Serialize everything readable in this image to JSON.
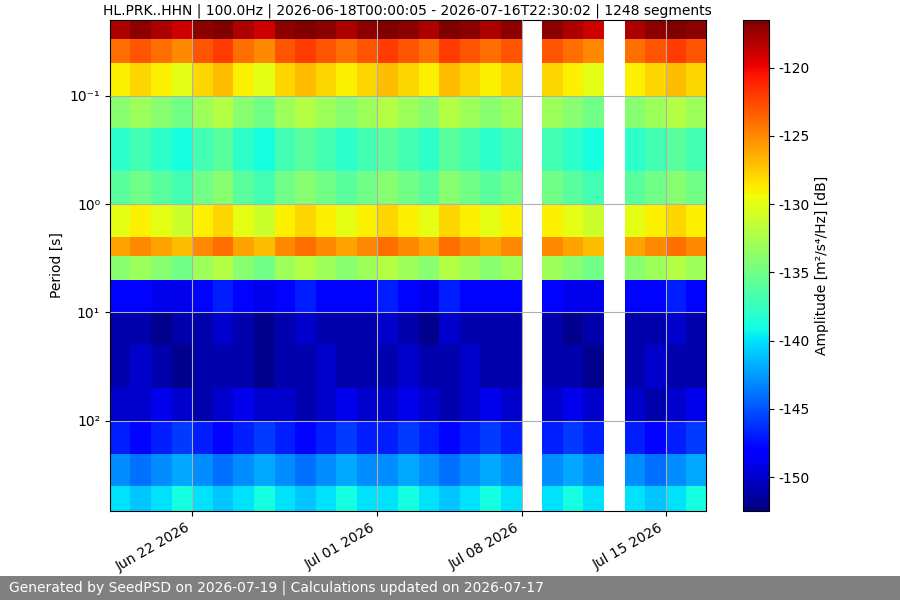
{
  "chart_data": {
    "type": "heatmap",
    "title": "HL.PRK..HHN | 100.0Hz | 2026-06-18T00:00:05 - 2026-07-16T22:30:02 | 1248 segments",
    "ylabel": "Period [s]",
    "footer": "Generated by SeedPSD on 2026-07-19 | Calculations updated on 2026-07-17",
    "log": "y",
    "grid": true,
    "xlim": [
      "2026-06-18T00:00:05",
      "2026-07-16T22:30:02"
    ],
    "ylim": [
      680,
      0.02
    ],
    "xticks": [
      {
        "value": "2026-06-22",
        "label": "Jun 22 2026"
      },
      {
        "value": "2026-07-01",
        "label": "Jul 01 2026"
      },
      {
        "value": "2026-07-08",
        "label": "Jul 08 2026"
      },
      {
        "value": "2026-07-15",
        "label": "Jul 15 2026"
      }
    ],
    "yticks": [
      {
        "value": 0.1,
        "label": "10⁻¹"
      },
      {
        "value": 1,
        "label": "10⁰"
      },
      {
        "value": 10,
        "label": "10¹"
      },
      {
        "value": 100,
        "label": "10²"
      }
    ],
    "x_edges": [
      "2026-06-18",
      "2026-06-19",
      "2026-06-20",
      "2026-06-21",
      "2026-06-22",
      "2026-06-23",
      "2026-06-24",
      "2026-06-25",
      "2026-06-26",
      "2026-06-27",
      "2026-06-28",
      "2026-06-29",
      "2026-06-30",
      "2026-07-01",
      "2026-07-02",
      "2026-07-03",
      "2026-07-04",
      "2026-07-05",
      "2026-07-06",
      "2026-07-07",
      "2026-07-08",
      "2026-07-09",
      "2026-07-10",
      "2026-07-11",
      "2026-07-12",
      "2026-07-13",
      "2026-07-14",
      "2026-07-15",
      "2026-07-16",
      "2026-07-17"
    ],
    "y_edges": [
      0.02,
      0.03,
      0.05,
      0.1,
      0.2,
      0.5,
      1,
      2,
      3,
      5,
      10,
      20,
      50,
      100,
      200,
      400,
      680
    ],
    "cells": [
      [
        -118,
        -117,
        -118,
        -119,
        -117,
        -116,
        -118,
        -119,
        -117,
        -116,
        -117,
        -118,
        -117,
        -116,
        -117,
        -118,
        -116,
        -117,
        -118,
        -117,
        null,
        -117,
        -118,
        -119,
        null,
        -118,
        -117,
        -116,
        -117
      ],
      [
        -124,
        -123,
        -124,
        -125,
        -123,
        -122,
        -124,
        -125,
        -123,
        -122,
        -123,
        -124,
        -123,
        -122,
        -123,
        -124,
        -122,
        -123,
        -124,
        -123,
        null,
        -123,
        -124,
        -125,
        null,
        -124,
        -123,
        -122,
        -123
      ],
      [
        -129,
        -128,
        -129,
        -130,
        -128,
        -127,
        -129,
        -130,
        -128,
        -127,
        -128,
        -129,
        -128,
        -127,
        -128,
        -129,
        -127,
        -128,
        -129,
        -128,
        null,
        -128,
        -129,
        -130,
        null,
        -129,
        -128,
        -127,
        -128
      ],
      [
        -134,
        -133,
        -134,
        -135,
        -133,
        -132,
        -134,
        -135,
        -133,
        -132,
        -133,
        -134,
        -133,
        -132,
        -133,
        -134,
        -132,
        -133,
        -134,
        -133,
        null,
        -133,
        -134,
        -135,
        null,
        -134,
        -133,
        -132,
        -133
      ],
      [
        -138,
        -137,
        -138,
        -139,
        -137,
        -136,
        -138,
        -139,
        -137,
        -136,
        -137,
        -138,
        -137,
        -136,
        -137,
        -138,
        -136,
        -137,
        -138,
        -137,
        null,
        -137,
        -138,
        -139,
        null,
        -138,
        -137,
        -136,
        -137
      ],
      [
        -136,
        -135,
        -136,
        -137,
        -135,
        -134,
        -136,
        -137,
        -135,
        -134,
        -135,
        -136,
        -135,
        -134,
        -135,
        -136,
        -134,
        -135,
        -136,
        -135,
        null,
        -135,
        -136,
        -137,
        null,
        -136,
        -135,
        -134,
        -135
      ],
      [
        -130,
        -129,
        -130,
        -131,
        -129,
        -128,
        -130,
        -131,
        -129,
        -128,
        -129,
        -130,
        -129,
        -128,
        -129,
        -130,
        -128,
        -129,
        -130,
        -129,
        null,
        -129,
        -130,
        -131,
        null,
        -130,
        -129,
        -128,
        -129
      ],
      [
        -126,
        -125,
        -126,
        -127,
        -125,
        -124,
        -126,
        -127,
        -125,
        -124,
        -125,
        -126,
        -125,
        -124,
        -125,
        -126,
        -124,
        -125,
        -126,
        -125,
        null,
        -125,
        -126,
        -127,
        null,
        -126,
        -125,
        -124,
        -125
      ],
      [
        -134,
        -133,
        -134,
        -135,
        -133,
        -132,
        -134,
        -135,
        -133,
        -132,
        -133,
        -134,
        -133,
        -132,
        -133,
        -134,
        -132,
        -133,
        -134,
        -133,
        null,
        -133,
        -134,
        -135,
        null,
        -134,
        -133,
        -132,
        -133
      ],
      [
        -148,
        -148,
        -149,
        -149,
        -148,
        -147,
        -148,
        -149,
        -148,
        -147,
        -148,
        -148,
        -148,
        -147,
        -148,
        -149,
        -147,
        -148,
        -148,
        -148,
        null,
        -148,
        -149,
        -149,
        null,
        -148,
        -148,
        -147,
        -148
      ],
      [
        -151,
        -151,
        -152,
        -151,
        -151,
        -150,
        -151,
        -152,
        -151,
        -150,
        -151,
        -151,
        -151,
        -150,
        -151,
        -152,
        -150,
        -151,
        -151,
        -151,
        null,
        -151,
        -152,
        -151,
        null,
        -151,
        -151,
        -150,
        -151
      ],
      [
        -151,
        -150,
        -151,
        -152,
        -151,
        -151,
        -151,
        -152,
        -151,
        -151,
        -150,
        -151,
        -151,
        -151,
        -150,
        -151,
        -151,
        -150,
        -151,
        -151,
        null,
        -151,
        -151,
        -152,
        null,
        -151,
        -150,
        -151,
        -151
      ],
      [
        -150,
        -150,
        -149,
        -150,
        -151,
        -150,
        -149,
        -150,
        -150,
        -151,
        -150,
        -149,
        -150,
        -150,
        -149,
        -150,
        -151,
        -150,
        -149,
        -150,
        null,
        -150,
        -149,
        -150,
        null,
        -150,
        -151,
        -150,
        -149
      ],
      [
        -147,
        -148,
        -147,
        -146,
        -147,
        -148,
        -147,
        -146,
        -147,
        -148,
        -147,
        -146,
        -147,
        -147,
        -146,
        -147,
        -148,
        -147,
        -146,
        -147,
        null,
        -147,
        -146,
        -147,
        null,
        -147,
        -148,
        -147,
        -146
      ],
      [
        -143,
        -144,
        -143,
        -142,
        -143,
        -144,
        -143,
        -142,
        -143,
        -144,
        -143,
        -142,
        -143,
        -143,
        -142,
        -143,
        -144,
        -143,
        -142,
        -143,
        null,
        -143,
        -142,
        -143,
        null,
        -143,
        -144,
        -143,
        -142
      ],
      [
        -140,
        -141,
        -140,
        -139,
        -140,
        -141,
        -140,
        -139,
        -140,
        -141,
        -140,
        -139,
        -140,
        -140,
        -139,
        -140,
        -141,
        -140,
        -139,
        -140,
        null,
        -140,
        -139,
        -140,
        null,
        -140,
        -141,
        -140,
        -139
      ]
    ],
    "colorbar_label": "Amplitude [m²/s⁴/Hz] [dB]",
    "colorbar_range": [
      -152.5,
      -116.5
    ],
    "colorbar_ticks": [
      -150,
      -145,
      -140,
      -135,
      -130,
      -125,
      -120
    ]
  }
}
